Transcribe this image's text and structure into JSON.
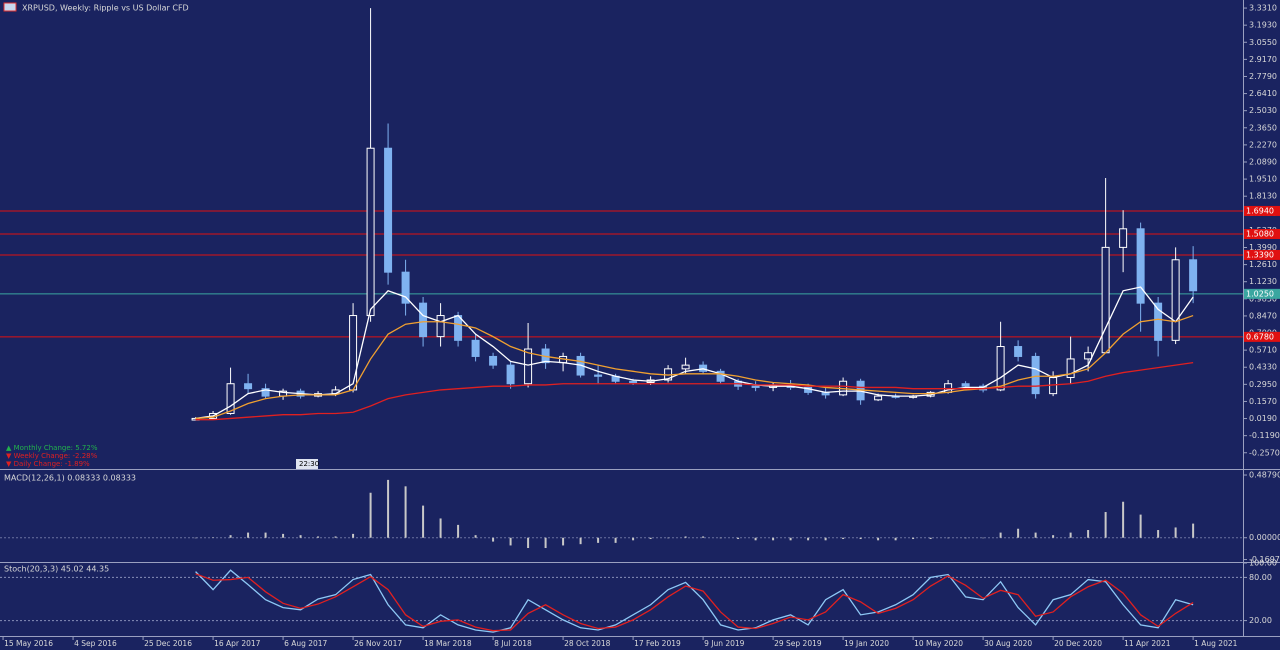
{
  "chart_data": [
    {
      "type": "candlestick",
      "title": "XRPUSD, Weekly: Ripple vs US Dollar CFD",
      "x": [
        44,
        48,
        52,
        56,
        60,
        64,
        68,
        72,
        76,
        80,
        84,
        88,
        92,
        96,
        100,
        104,
        108,
        112,
        116,
        120,
        124,
        128,
        132,
        136,
        140,
        144,
        148,
        152,
        156,
        160,
        164,
        168,
        172,
        176,
        180,
        184,
        188,
        192,
        196,
        200,
        204,
        208,
        212,
        216,
        220,
        224,
        228,
        232,
        236,
        240,
        244,
        248,
        252,
        256,
        260,
        264,
        268,
        272
      ],
      "ohlc": [
        [
          0.007,
          0.03,
          0.005,
          0.02
        ],
        [
          0.02,
          0.08,
          0.02,
          0.06
        ],
        [
          0.06,
          0.43,
          0.05,
          0.3
        ],
        [
          0.3,
          0.38,
          0.22,
          0.26
        ],
        [
          0.26,
          0.3,
          0.18,
          0.2
        ],
        [
          0.2,
          0.26,
          0.17,
          0.24
        ],
        [
          0.24,
          0.26,
          0.18,
          0.2
        ],
        [
          0.2,
          0.24,
          0.19,
          0.22
        ],
        [
          0.22,
          0.28,
          0.2,
          0.25
        ],
        [
          0.25,
          0.95,
          0.23,
          0.85
        ],
        [
          0.85,
          3.33,
          0.8,
          2.2
        ],
        [
          2.2,
          2.4,
          1.1,
          1.2
        ],
        [
          1.2,
          1.3,
          0.85,
          0.95
        ],
        [
          0.95,
          1.0,
          0.6,
          0.68
        ],
        [
          0.68,
          0.95,
          0.6,
          0.85
        ],
        [
          0.85,
          0.88,
          0.6,
          0.65
        ],
        [
          0.65,
          0.7,
          0.48,
          0.52
        ],
        [
          0.52,
          0.55,
          0.42,
          0.45
        ],
        [
          0.45,
          0.48,
          0.26,
          0.3
        ],
        [
          0.3,
          0.79,
          0.27,
          0.58
        ],
        [
          0.58,
          0.62,
          0.42,
          0.47
        ],
        [
          0.47,
          0.55,
          0.4,
          0.52
        ],
        [
          0.52,
          0.55,
          0.35,
          0.37
        ],
        [
          0.37,
          0.45,
          0.3,
          0.36
        ],
        [
          0.36,
          0.38,
          0.3,
          0.32
        ],
        [
          0.32,
          0.34,
          0.29,
          0.31
        ],
        [
          0.31,
          0.36,
          0.29,
          0.33
        ],
        [
          0.33,
          0.45,
          0.31,
          0.42
        ],
        [
          0.42,
          0.51,
          0.38,
          0.45
        ],
        [
          0.45,
          0.48,
          0.38,
          0.4
        ],
        [
          0.4,
          0.42,
          0.3,
          0.32
        ],
        [
          0.32,
          0.34,
          0.25,
          0.28
        ],
        [
          0.28,
          0.32,
          0.24,
          0.27
        ],
        [
          0.27,
          0.31,
          0.24,
          0.29
        ],
        [
          0.29,
          0.33,
          0.25,
          0.27
        ],
        [
          0.27,
          0.3,
          0.21,
          0.23
        ],
        [
          0.23,
          0.27,
          0.18,
          0.21
        ],
        [
          0.21,
          0.35,
          0.2,
          0.32
        ],
        [
          0.32,
          0.34,
          0.13,
          0.17
        ],
        [
          0.17,
          0.22,
          0.16,
          0.2
        ],
        [
          0.2,
          0.22,
          0.18,
          0.19
        ],
        [
          0.19,
          0.21,
          0.18,
          0.2
        ],
        [
          0.2,
          0.24,
          0.19,
          0.23
        ],
        [
          0.23,
          0.33,
          0.22,
          0.3
        ],
        [
          0.3,
          0.32,
          0.26,
          0.28
        ],
        [
          0.28,
          0.3,
          0.23,
          0.25
        ],
        [
          0.25,
          0.8,
          0.24,
          0.6
        ],
        [
          0.6,
          0.65,
          0.48,
          0.52
        ],
        [
          0.52,
          0.55,
          0.18,
          0.22
        ],
        [
          0.22,
          0.4,
          0.2,
          0.35
        ],
        [
          0.35,
          0.68,
          0.3,
          0.5
        ],
        [
          0.5,
          0.6,
          0.4,
          0.55
        ],
        [
          0.55,
          1.96,
          0.55,
          1.4
        ],
        [
          1.4,
          1.7,
          1.2,
          1.55
        ],
        [
          1.55,
          1.6,
          0.72,
          0.95
        ],
        [
          0.95,
          1.0,
          0.52,
          0.65
        ],
        [
          0.65,
          1.4,
          0.62,
          1.3
        ],
        [
          1.3,
          1.41,
          0.95,
          1.05
        ]
      ],
      "up_color": "#ffffff",
      "down_color": "#7fb2f0",
      "series": [
        {
          "color": "#ffffff",
          "values": [
            0.02,
            0.04,
            0.12,
            0.22,
            0.25,
            0.23,
            0.22,
            0.21,
            0.22,
            0.3,
            0.9,
            1.05,
            1.0,
            0.85,
            0.8,
            0.85,
            0.7,
            0.6,
            0.48,
            0.45,
            0.48,
            0.47,
            0.45,
            0.4,
            0.36,
            0.33,
            0.32,
            0.34,
            0.4,
            0.42,
            0.38,
            0.32,
            0.29,
            0.28,
            0.28,
            0.26,
            0.23,
            0.24,
            0.24,
            0.21,
            0.2,
            0.2,
            0.21,
            0.25,
            0.27,
            0.27,
            0.35,
            0.45,
            0.42,
            0.35,
            0.38,
            0.45,
            0.75,
            1.05,
            1.08,
            0.9,
            0.8,
            1.0
          ]
        },
        {
          "color": "#f0a030",
          "values": [
            0.02,
            0.03,
            0.08,
            0.14,
            0.18,
            0.2,
            0.21,
            0.21,
            0.21,
            0.25,
            0.5,
            0.7,
            0.78,
            0.8,
            0.8,
            0.78,
            0.75,
            0.68,
            0.6,
            0.55,
            0.52,
            0.5,
            0.48,
            0.45,
            0.42,
            0.4,
            0.38,
            0.37,
            0.38,
            0.38,
            0.38,
            0.36,
            0.33,
            0.31,
            0.3,
            0.29,
            0.27,
            0.26,
            0.25,
            0.24,
            0.23,
            0.22,
            0.22,
            0.23,
            0.25,
            0.26,
            0.28,
            0.33,
            0.36,
            0.36,
            0.38,
            0.42,
            0.55,
            0.7,
            0.8,
            0.82,
            0.8,
            0.85
          ]
        },
        {
          "color": "#e02020",
          "values": [
            0.01,
            0.01,
            0.02,
            0.03,
            0.04,
            0.05,
            0.05,
            0.06,
            0.06,
            0.07,
            0.12,
            0.18,
            0.21,
            0.23,
            0.25,
            0.26,
            0.27,
            0.28,
            0.28,
            0.29,
            0.29,
            0.3,
            0.3,
            0.3,
            0.3,
            0.3,
            0.3,
            0.3,
            0.3,
            0.3,
            0.3,
            0.3,
            0.29,
            0.29,
            0.29,
            0.28,
            0.28,
            0.28,
            0.27,
            0.27,
            0.27,
            0.26,
            0.26,
            0.26,
            0.26,
            0.26,
            0.27,
            0.28,
            0.28,
            0.29,
            0.3,
            0.32,
            0.36,
            0.39,
            0.41,
            0.43,
            0.45,
            0.47
          ]
        }
      ],
      "levels": [
        {
          "value": 1.694,
          "label": "1.6940",
          "color": "#e01010"
        },
        {
          "value": 1.508,
          "label": "1.5080",
          "color": "#e01010"
        },
        {
          "value": 1.339,
          "label": "1.3390",
          "color": "#e01010"
        },
        {
          "value": 1.025,
          "label": "1.0250",
          "color": "#3aa6a0"
        },
        {
          "value": 0.678,
          "label": "0.6780",
          "color": "#e01010"
        }
      ],
      "xlim": [
        -0.7,
        283.4
      ],
      "ylim": [
        -0.38,
        3.396
      ],
      "yticks": [
        {
          "value": 3.331,
          "label": "3.3310"
        },
        {
          "value": 3.193,
          "label": "3.1930"
        },
        {
          "value": 3.055,
          "label": "3.0550"
        },
        {
          "value": 2.917,
          "label": "2.9170"
        },
        {
          "value": 2.779,
          "label": "2.7790"
        },
        {
          "value": 2.641,
          "label": "2.6410"
        },
        {
          "value": 2.503,
          "label": "2.5030"
        },
        {
          "value": 2.365,
          "label": "2.3650"
        },
        {
          "value": 2.227,
          "label": "2.2270"
        },
        {
          "value": 2.089,
          "label": "2.0890"
        },
        {
          "value": 1.951,
          "label": "1.9510"
        },
        {
          "value": 1.813,
          "label": "1.8130"
        },
        {
          "value": 1.675,
          "label": "1.6750"
        },
        {
          "value": 1.537,
          "label": "1.5370"
        },
        {
          "value": 1.399,
          "label": "1.3990"
        },
        {
          "value": 1.261,
          "label": "1.2610"
        },
        {
          "value": 1.123,
          "label": "1.1230"
        },
        {
          "value": 0.985,
          "label": "0.9850"
        },
        {
          "value": 0.847,
          "label": "0.8470"
        },
        {
          "value": 0.709,
          "label": "0.7090"
        },
        {
          "value": 0.571,
          "label": "0.5710"
        },
        {
          "value": 0.433,
          "label": "0.4330"
        },
        {
          "value": 0.295,
          "label": "0.2950"
        },
        {
          "value": 0.157,
          "label": "0.1570"
        },
        {
          "value": 0.019,
          "label": "0.0190"
        },
        {
          "value": -0.119,
          "label": "-0.1190"
        },
        {
          "value": -0.257,
          "label": "-0.2570"
        }
      ],
      "changes": [
        {
          "text": "▲ Monthly Change: 5.72%",
          "color": "#22b14c"
        },
        {
          "text": "▼ Weekly Change: -2.28%",
          "color": "#e02020"
        },
        {
          "text": "▼ Daily Change: -1.89%",
          "color": "#e02020"
        }
      ],
      "time_label": "22:30"
    },
    {
      "type": "bar",
      "title": "MACD(12,26,1) 0.08333 0.08333",
      "color": "#c8c8c8",
      "values": [
        0,
        0.002,
        0.02,
        0.04,
        0.04,
        0.03,
        0.02,
        0.01,
        0.01,
        0.03,
        0.35,
        0.45,
        0.4,
        0.25,
        0.15,
        0.1,
        0.02,
        -0.03,
        -0.06,
        -0.08,
        -0.08,
        -0.06,
        -0.05,
        -0.04,
        -0.04,
        -0.02,
        -0.01,
        0,
        0.01,
        0.01,
        0,
        -0.01,
        -0.02,
        -0.02,
        -0.02,
        -0.02,
        -0.02,
        -0.01,
        -0.01,
        -0.02,
        -0.02,
        -0.01,
        -0.01,
        0,
        0,
        0,
        0.04,
        0.07,
        0.04,
        0.02,
        0.04,
        0.06,
        0.2,
        0.28,
        0.18,
        0.06,
        0.08,
        0.11
      ],
      "ylim": [
        -0.181,
        0.527
      ],
      "yticks": [
        {
          "value": 0.4879,
          "label": "0.48790"
        },
        {
          "value": 0,
          "label": "0.00000"
        },
        {
          "value": -0.16972,
          "label": "-0.16972"
        }
      ]
    },
    {
      "type": "line",
      "title": "Stoch(20,3,3) 45.02 44.35",
      "series": [
        {
          "color": "#8ec8f5",
          "values": [
            88,
            63,
            90,
            70,
            49,
            38,
            35,
            50,
            56,
            77,
            84,
            42,
            14,
            10,
            28,
            14,
            7,
            4,
            10,
            49,
            35,
            21,
            10,
            7,
            14,
            28,
            42,
            63,
            73,
            49,
            14,
            7,
            10,
            21,
            28,
            14,
            49,
            63,
            28,
            32,
            42,
            56,
            80,
            84,
            53,
            49,
            74,
            38,
            14,
            49,
            56,
            77,
            74,
            42,
            14,
            10,
            49,
            42
          ]
        },
        {
          "color": "#e02020",
          "values": [
            85,
            76,
            77,
            80,
            60,
            44,
            37,
            43,
            53,
            67,
            81,
            63,
            28,
            12,
            19,
            21,
            11,
            6,
            7,
            30,
            42,
            28,
            16,
            9,
            11,
            21,
            35,
            53,
            68,
            61,
            32,
            11,
            9,
            16,
            25,
            21,
            32,
            56,
            46,
            30,
            37,
            49,
            68,
            82,
            69,
            51,
            62,
            56,
            26,
            32,
            53,
            67,
            76,
            58,
            28,
            12,
            30,
            45
          ]
        }
      ],
      "ylim": [
        0,
        100
      ],
      "yticks": [
        {
          "value": 100,
          "label": "100.00"
        },
        {
          "value": 80,
          "label": "80.00"
        },
        {
          "value": 20,
          "label": "20.00"
        }
      ],
      "levels": [
        80,
        20
      ],
      "xticks": [
        {
          "value": 0,
          "label": "15 May 2016"
        },
        {
          "value": 16,
          "label": "4 Sep 2016"
        },
        {
          "value": 32,
          "label": "25 Dec 2016"
        },
        {
          "value": 48,
          "label": "16 Apr 2017"
        },
        {
          "value": 64,
          "label": "6 Aug 2017"
        },
        {
          "value": 80,
          "label": "26 Nov 2017"
        },
        {
          "value": 96,
          "label": "18 Mar 2018"
        },
        {
          "value": 112,
          "label": "8 Jul 2018"
        },
        {
          "value": 128,
          "label": "28 Oct 2018"
        },
        {
          "value": 144,
          "label": "17 Feb 2019"
        },
        {
          "value": 160,
          "label": "9 Jun 2019"
        },
        {
          "value": 176,
          "label": "29 Sep 2019"
        },
        {
          "value": 192,
          "label": "19 Jan 2020"
        },
        {
          "value": 208,
          "label": "10 May 2020"
        },
        {
          "value": 224,
          "label": "30 Aug 2020"
        },
        {
          "value": 240,
          "label": "20 Dec 2020"
        },
        {
          "value": 256,
          "label": "11 Apr 2021"
        },
        {
          "value": 272,
          "label": "1 Aug 2021"
        }
      ]
    }
  ]
}
